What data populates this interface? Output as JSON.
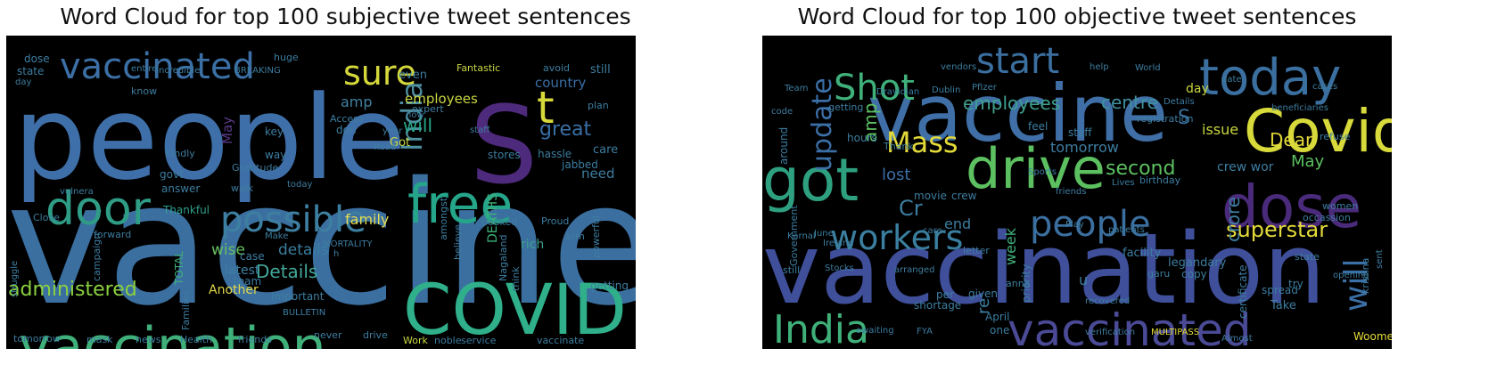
{
  "chart_data": [
    {
      "type": "wordcloud",
      "title": "Word Cloud for top 100 subjective tweet sentences",
      "background": "#000000",
      "words": [
        {
          "text": "vaccine",
          "size": 190,
          "color": "#3b6fa0"
        },
        {
          "text": "people",
          "size": 130,
          "color": "#3f6fa8"
        },
        {
          "text": "S",
          "size": 120,
          "color": "#4e2a7c"
        },
        {
          "text": "COVID",
          "size": 78,
          "color": "#2fb08a"
        },
        {
          "text": "vaccination",
          "size": 60,
          "color": "#3fb07a"
        },
        {
          "text": "free",
          "size": 60,
          "color": "#25a58a"
        },
        {
          "text": "door",
          "size": 52,
          "color": "#2f9c86"
        },
        {
          "text": "t",
          "size": 50,
          "color": "#d7d83a"
        },
        {
          "text": "possible",
          "size": 40,
          "color": "#3d7fa0"
        },
        {
          "text": "vaccinated",
          "size": 40,
          "color": "#3b6fa5"
        },
        {
          "text": "sure",
          "size": 38,
          "color": "#d5d83a"
        },
        {
          "text": "India",
          "size": 32,
          "color": "#4d8fa0"
        },
        {
          "text": "administered",
          "size": 22,
          "color": "#8bd040"
        },
        {
          "text": "great",
          "size": 22,
          "color": "#3a6fa6"
        },
        {
          "text": "will",
          "size": 20,
          "color": "#28a78a"
        },
        {
          "text": "Details",
          "size": 20,
          "color": "#42a89a"
        },
        {
          "text": "wise",
          "size": 17,
          "color": "#67c060"
        },
        {
          "text": "details",
          "size": 17,
          "color": "#3b7fa0"
        },
        {
          "text": "family",
          "size": 16,
          "color": "#e3da52"
        },
        {
          "text": "amp",
          "size": 16,
          "color": "#4080a0"
        },
        {
          "text": "employees",
          "size": 15,
          "color": "#c8d640"
        },
        {
          "text": "country",
          "size": 15,
          "color": "#3b6fa6"
        },
        {
          "text": "need",
          "size": 15,
          "color": "#3d7da0"
        },
        {
          "text": "May",
          "size": 15,
          "color": "#5a3a86"
        },
        {
          "text": "DEATHS",
          "size": 14,
          "color": "#3fb07a"
        },
        {
          "text": "Another",
          "size": 14,
          "color": "#e0d848"
        },
        {
          "text": "latest",
          "size": 14,
          "color": "#3d80a0"
        },
        {
          "text": "rich",
          "size": 14,
          "color": "#3fa08e"
        },
        {
          "text": "still",
          "size": 13,
          "color": "#3d7da0"
        },
        {
          "text": "even",
          "size": 13,
          "color": "#3d7da0"
        },
        {
          "text": "Got",
          "size": 13,
          "color": "#c8d640"
        },
        {
          "text": "care",
          "size": 13,
          "color": "#3d7da0"
        },
        {
          "text": "Thankful",
          "size": 12,
          "color": "#2fa08a"
        },
        {
          "text": "answer",
          "size": 12,
          "color": "#3d7da0"
        },
        {
          "text": "govt",
          "size": 12,
          "color": "#3d7da0"
        },
        {
          "text": "dose",
          "size": 12,
          "color": "#3d7da0"
        },
        {
          "text": "state",
          "size": 12,
          "color": "#3d7da0"
        },
        {
          "text": "TOTAL",
          "size": 12,
          "color": "#3fb07a"
        },
        {
          "text": "Important",
          "size": 12,
          "color": "#3d7da0"
        },
        {
          "text": "team",
          "size": 12,
          "color": "#3d7da0"
        },
        {
          "text": "case",
          "size": 12,
          "color": "#3d7da0"
        },
        {
          "text": "stores",
          "size": 12,
          "color": "#3d7da0"
        },
        {
          "text": "hassle",
          "size": 12,
          "color": "#3d7da0"
        },
        {
          "text": "jabbed",
          "size": 12,
          "color": "#3d7da0"
        },
        {
          "text": "getting",
          "size": 12,
          "color": "#3d7da0"
        },
        {
          "text": "don",
          "size": 12,
          "color": "#3d7da0"
        },
        {
          "text": "key",
          "size": 12,
          "color": "#3d7da0"
        },
        {
          "text": "way",
          "size": 12,
          "color": "#3d7da0"
        },
        {
          "text": "Fantastic",
          "size": 11,
          "color": "#c8d640"
        },
        {
          "text": "avoid",
          "size": 11,
          "color": "#3d7da0"
        },
        {
          "text": "huge",
          "size": 11,
          "color": "#3d7da0"
        },
        {
          "text": "Access",
          "size": 11,
          "color": "#3d7da0"
        },
        {
          "text": "know",
          "size": 11,
          "color": "#3d7da0"
        },
        {
          "text": "expert",
          "size": 11,
          "color": "#3d7da0"
        },
        {
          "text": "plan",
          "size": 11,
          "color": "#3d7da0"
        },
        {
          "text": "Gratitude",
          "size": 11,
          "color": "#3d7da0"
        },
        {
          "text": "Kindly",
          "size": 11,
          "color": "#3d7da0"
        },
        {
          "text": "walk",
          "size": 11,
          "color": "#3d7da0"
        },
        {
          "text": "Close",
          "size": 11,
          "color": "#3d7da0"
        },
        {
          "text": "forward",
          "size": 11,
          "color": "#3d7da0"
        },
        {
          "text": "campaign",
          "size": 11,
          "color": "#3d7da0"
        },
        {
          "text": "Families",
          "size": 11,
          "color": "#3d7da0"
        },
        {
          "text": "believe",
          "size": 11,
          "color": "#3d7da0"
        },
        {
          "text": "amongst",
          "size": 11,
          "color": "#3d7da0"
        },
        {
          "text": "booked",
          "size": 11,
          "color": "#3d7da0"
        },
        {
          "text": "Proud",
          "size": 11,
          "color": "#3d7da0"
        },
        {
          "text": "arm",
          "size": 11,
          "color": "#3d7da0"
        },
        {
          "text": "think",
          "size": 11,
          "color": "#3d7da0"
        },
        {
          "text": "Nagaland",
          "size": 11,
          "color": "#3d7da0"
        },
        {
          "text": "powerful",
          "size": 11,
          "color": "#3d7da0"
        },
        {
          "text": "tomorrow",
          "size": 11,
          "color": "#3d7da0"
        },
        {
          "text": "mask",
          "size": 11,
          "color": "#3d7da0"
        },
        {
          "text": "news",
          "size": 11,
          "color": "#3d7da0"
        },
        {
          "text": "Health",
          "size": 11,
          "color": "#3d7da0"
        },
        {
          "text": "friends",
          "size": 11,
          "color": "#3d7da0"
        },
        {
          "text": "never",
          "size": 11,
          "color": "#3d7da0"
        },
        {
          "text": "drive",
          "size": 11,
          "color": "#3d7da0"
        },
        {
          "text": "Work",
          "size": 11,
          "color": "#c8d640"
        },
        {
          "text": "noble",
          "size": 11,
          "color": "#3d7da0"
        },
        {
          "text": "service",
          "size": 11,
          "color": "#3d7da0"
        },
        {
          "text": "vaccinate",
          "size": 11,
          "color": "#3d7da0"
        },
        {
          "text": "struggle",
          "size": 10,
          "color": "#3d7da0"
        },
        {
          "text": "vulnera",
          "size": 10,
          "color": "#3d7da0"
        },
        {
          "text": "Incredible",
          "size": 10,
          "color": "#3d7da0"
        },
        {
          "text": "BREAKING",
          "size": 10,
          "color": "#3d7da0"
        },
        {
          "text": "entire",
          "size": 10,
          "color": "#3d7da0"
        },
        {
          "text": "day",
          "size": 10,
          "color": "#3d7da0"
        },
        {
          "text": "Read",
          "size": 10,
          "color": "#3d7da0"
        },
        {
          "text": "now",
          "size": 10,
          "color": "#3d7da0"
        },
        {
          "text": "year",
          "size": 10,
          "color": "#3d7da0"
        },
        {
          "text": "staff",
          "size": 10,
          "color": "#3d7da0"
        },
        {
          "text": "today",
          "size": 10,
          "color": "#3d7da0"
        },
        {
          "text": "Make",
          "size": 10,
          "color": "#3d7da0"
        },
        {
          "text": "MORTALITY",
          "size": 10,
          "color": "#3d7da0"
        },
        {
          "text": "BULLETIN",
          "size": 10,
          "color": "#3d7da0"
        },
        {
          "text": "h",
          "size": 10,
          "color": "#3d7da0"
        }
      ]
    },
    {
      "type": "wordcloud",
      "title": "Word Cloud for top 100 objective tweet sentences",
      "background": "#000000",
      "words": [
        {
          "text": "vaccination",
          "size": 110,
          "color": "#3f4f9a"
        },
        {
          "text": "vaccine",
          "size": 88,
          "color": "#3f6fa6"
        },
        {
          "text": "Covid",
          "size": 66,
          "color": "#d7da3a"
        },
        {
          "text": "got",
          "size": 66,
          "color": "#2ea080"
        },
        {
          "text": "dose",
          "size": 66,
          "color": "#4a2a7a"
        },
        {
          "text": "drive",
          "size": 62,
          "color": "#5cc060"
        },
        {
          "text": "today",
          "size": 56,
          "color": "#3a6fa0"
        },
        {
          "text": "vaccinated",
          "size": 50,
          "color": "#4a4a96"
        },
        {
          "text": "India",
          "size": 44,
          "color": "#3fb07a"
        },
        {
          "text": "start",
          "size": 40,
          "color": "#3b6fa0"
        },
        {
          "text": "Shot",
          "size": 40,
          "color": "#3fb07a"
        },
        {
          "text": "people",
          "size": 40,
          "color": "#3b6fa0"
        },
        {
          "text": "workers",
          "size": 38,
          "color": "#3b7fa0"
        },
        {
          "text": "will",
          "size": 36,
          "color": "#3b6fa6"
        },
        {
          "text": "Mass",
          "size": 32,
          "color": "#e3da3a"
        },
        {
          "text": "update",
          "size": 30,
          "color": "#3b6fa6"
        },
        {
          "text": "superstar",
          "size": 24,
          "color": "#e3da3a"
        },
        {
          "text": "Cr",
          "size": 24,
          "color": "#3d7da0"
        },
        {
          "text": "second",
          "size": 22,
          "color": "#5cc060"
        },
        {
          "text": "S",
          "size": 22,
          "color": "#3b6fa0"
        },
        {
          "text": "employees",
          "size": 20,
          "color": "#3fa08e"
        },
        {
          "text": "centre",
          "size": 20,
          "color": "#4090a0"
        },
        {
          "text": "Dear",
          "size": 20,
          "color": "#e3da3a"
        },
        {
          "text": "crore",
          "size": 20,
          "color": "#3d7da0"
        },
        {
          "text": "amp",
          "size": 20,
          "color": "#5cc060"
        },
        {
          "text": "lost",
          "size": 18,
          "color": "#3b6fa6"
        },
        {
          "text": "May",
          "size": 18,
          "color": "#5cc060"
        },
        {
          "text": "re",
          "size": 18,
          "color": "#3b7fa0"
        },
        {
          "text": "issue",
          "size": 16,
          "color": "#c8d640"
        },
        {
          "text": "tomorrow",
          "size": 16,
          "color": "#3d7da0"
        },
        {
          "text": "end",
          "size": 16,
          "color": "#3d7da0"
        },
        {
          "text": "week",
          "size": 16,
          "color": "#3fb07a"
        },
        {
          "text": "u",
          "size": 16,
          "color": "#3d7da0"
        },
        {
          "text": "day",
          "size": 14,
          "color": "#c8d640"
        },
        {
          "text": "crew wor",
          "size": 14,
          "color": "#3d7da0"
        },
        {
          "text": "facility",
          "size": 13,
          "color": "#3d7da0"
        },
        {
          "text": "legandary",
          "size": 13,
          "color": "#3d7da0"
        },
        {
          "text": "Take",
          "size": 13,
          "color": "#3d7da0"
        },
        {
          "text": "Woomee",
          "size": 12,
          "color": "#e3da3a"
        },
        {
          "text": "copy",
          "size": 12,
          "color": "#3d7da0"
        },
        {
          "text": "April",
          "size": 12,
          "color": "#3d7da0"
        },
        {
          "text": "one",
          "size": 12,
          "color": "#3d7da0"
        },
        {
          "text": "per",
          "size": 12,
          "color": "#3d7da0"
        },
        {
          "text": "given",
          "size": 12,
          "color": "#3d7da0"
        },
        {
          "text": "priority",
          "size": 12,
          "color": "#3d7da0"
        },
        {
          "text": "certificate",
          "size": 12,
          "color": "#3d7da0"
        },
        {
          "text": "spread",
          "size": 12,
          "color": "#3d7da0"
        },
        {
          "text": "try",
          "size": 12,
          "color": "#3d7da0"
        },
        {
          "text": "shortage",
          "size": 12,
          "color": "#3d7da0"
        },
        {
          "text": "movie",
          "size": 12,
          "color": "#3d7da0"
        },
        {
          "text": "crew",
          "size": 12,
          "color": "#3d7da0"
        },
        {
          "text": "feel",
          "size": 12,
          "color": "#3d7da0"
        },
        {
          "text": "staff",
          "size": 12,
          "color": "#3d7da0"
        },
        {
          "text": "hours",
          "size": 12,
          "color": "#3d7da0"
        },
        {
          "text": "around",
          "size": 12,
          "color": "#3d7da0"
        },
        {
          "text": "Government",
          "size": 11,
          "color": "#3d7da0"
        },
        {
          "text": "still",
          "size": 11,
          "color": "#3d7da0"
        },
        {
          "text": "Thank",
          "size": 11,
          "color": "#3d7da0"
        },
        {
          "text": "getting",
          "size": 11,
          "color": "#3d7da0"
        },
        {
          "text": "birthday",
          "size": 11,
          "color": "#3d7da0"
        },
        {
          "text": "registration",
          "size": 11,
          "color": "#3d7da0"
        },
        {
          "text": "letter",
          "size": 11,
          "color": "#3d7da0"
        },
        {
          "text": "anna",
          "size": 11,
          "color": "#3d7da0"
        },
        {
          "text": "garu",
          "size": 11,
          "color": "#3d7da0"
        },
        {
          "text": "state",
          "size": 11,
          "color": "#3d7da0"
        },
        {
          "text": "women",
          "size": 11,
          "color": "#3d7da0"
        },
        {
          "text": "occassion",
          "size": 11,
          "color": "#3d7da0"
        },
        {
          "text": "refuse",
          "size": 11,
          "color": "#3d7da0"
        },
        {
          "text": "krishna",
          "size": 11,
          "color": "#3d7da0"
        },
        {
          "text": "vendors",
          "size": 10,
          "color": "#3d7da0"
        },
        {
          "text": "help",
          "size": 10,
          "color": "#3d7da0"
        },
        {
          "text": "World",
          "size": 10,
          "color": "#3d7da0"
        },
        {
          "text": "date",
          "size": 10,
          "color": "#3d7da0"
        },
        {
          "text": "cases",
          "size": 10,
          "color": "#3d7da0"
        },
        {
          "text": "Pfizer",
          "size": 10,
          "color": "#3d7da0"
        },
        {
          "text": "Dublin",
          "size": 10,
          "color": "#3d7da0"
        },
        {
          "text": "Dravidian",
          "size": 10,
          "color": "#3d7da0"
        },
        {
          "text": "Details",
          "size": 10,
          "color": "#3d7da0"
        },
        {
          "text": "beneficiaries",
          "size": 10,
          "color": "#3d7da0"
        },
        {
          "text": "June",
          "size": 10,
          "color": "#3d7da0"
        },
        {
          "text": "Sports",
          "size": 10,
          "color": "#3d7da0"
        },
        {
          "text": "friends",
          "size": 10,
          "color": "#3d7da0"
        },
        {
          "text": "Lives",
          "size": 10,
          "color": "#3d7da0"
        },
        {
          "text": "Karnal",
          "size": 10,
          "color": "#3d7da0"
        },
        {
          "text": "Ireland",
          "size": 10,
          "color": "#3d7da0"
        },
        {
          "text": "Stocks",
          "size": 10,
          "color": "#3d7da0"
        },
        {
          "text": "arranged",
          "size": 10,
          "color": "#3d7da0"
        },
        {
          "text": "verification",
          "size": 10,
          "color": "#3d7da0"
        },
        {
          "text": "MULTIPASS",
          "size": 10,
          "color": "#e3da3a"
        },
        {
          "text": "opening",
          "size": 10,
          "color": "#3d7da0"
        },
        {
          "text": "Almost",
          "size": 10,
          "color": "#3d7da0"
        },
        {
          "text": "Play",
          "size": 10,
          "color": "#3d7da0"
        },
        {
          "text": "care",
          "size": 10,
          "color": "#3d7da0"
        },
        {
          "text": "awaiting",
          "size": 10,
          "color": "#3d7da0"
        },
        {
          "text": "FYA",
          "size": 10,
          "color": "#3d7da0"
        },
        {
          "text": "recovered",
          "size": 10,
          "color": "#3d7da0"
        },
        {
          "text": "patients",
          "size": 10,
          "color": "#3d7da0"
        },
        {
          "text": "Team",
          "size": 10,
          "color": "#3d7da0"
        },
        {
          "text": "code",
          "size": 10,
          "color": "#3d7da0"
        },
        {
          "text": "sent",
          "size": 10,
          "color": "#3d7da0"
        }
      ]
    }
  ]
}
